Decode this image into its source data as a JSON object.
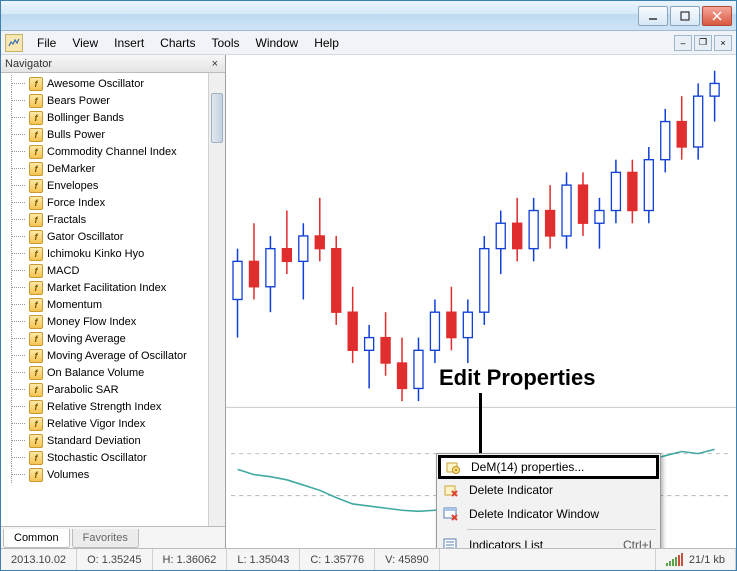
{
  "menubar": {
    "items": [
      "File",
      "View",
      "Insert",
      "Charts",
      "Tools",
      "Window",
      "Help"
    ]
  },
  "navigator": {
    "title": "Navigator",
    "tabs": {
      "common": "Common",
      "favorites": "Favorites"
    },
    "indicators": [
      "Awesome Oscillator",
      "Bears Power",
      "Bollinger Bands",
      "Bulls Power",
      "Commodity Channel Index",
      "DeMarker",
      "Envelopes",
      "Force Index",
      "Fractals",
      "Gator Oscillator",
      "Ichimoku Kinko Hyo",
      "MACD",
      "Market Facilitation Index",
      "Momentum",
      "Money Flow Index",
      "Moving Average",
      "Moving Average of Oscillator",
      "On Balance Volume",
      "Parabolic SAR",
      "Relative Strength Index",
      "Relative Vigor Index",
      "Standard Deviation",
      "Stochastic Oscillator",
      "Volumes"
    ]
  },
  "callout": "Edit Properties",
  "context_menu": {
    "items": [
      {
        "label": "DeM(14) properties...",
        "icon": "gear"
      },
      {
        "label": "Delete Indicator",
        "icon": "delete"
      },
      {
        "label": "Delete Indicator Window",
        "icon": "delete-window"
      }
    ],
    "footer": {
      "label": "Indicators List",
      "shortcut": "Ctrl+I",
      "icon": "list"
    }
  },
  "status": {
    "date": "2013.10.02",
    "open": "O: 1.35245",
    "high": "H: 1.36062",
    "low": "L: 1.35043",
    "close": "C: 1.35776",
    "volume": "V: 45890",
    "connection": "21/1 kb"
  },
  "chart": {
    "main": {
      "type": "candlestick",
      "colors": {
        "bull_body": "#ffffff",
        "bull_border": "#1040d8",
        "bear_body": "#e02d2d",
        "bear_border": "#e02d2d",
        "wick_bull": "#1040d8",
        "wick_bear": "#e02d2d"
      },
      "y_range": [
        1.344,
        1.37
      ],
      "candles": [
        {
          "o": 1.352,
          "h": 1.356,
          "l": 1.349,
          "c": 1.355,
          "dir": "bull"
        },
        {
          "o": 1.355,
          "h": 1.358,
          "l": 1.352,
          "c": 1.353,
          "dir": "bear"
        },
        {
          "o": 1.353,
          "h": 1.357,
          "l": 1.351,
          "c": 1.356,
          "dir": "bull"
        },
        {
          "o": 1.356,
          "h": 1.359,
          "l": 1.354,
          "c": 1.355,
          "dir": "bear"
        },
        {
          "o": 1.355,
          "h": 1.358,
          "l": 1.352,
          "c": 1.357,
          "dir": "bull"
        },
        {
          "o": 1.357,
          "h": 1.36,
          "l": 1.355,
          "c": 1.356,
          "dir": "bear"
        },
        {
          "o": 1.356,
          "h": 1.357,
          "l": 1.35,
          "c": 1.351,
          "dir": "bear"
        },
        {
          "o": 1.351,
          "h": 1.353,
          "l": 1.347,
          "c": 1.348,
          "dir": "bear"
        },
        {
          "o": 1.348,
          "h": 1.35,
          "l": 1.345,
          "c": 1.349,
          "dir": "bull"
        },
        {
          "o": 1.349,
          "h": 1.351,
          "l": 1.346,
          "c": 1.347,
          "dir": "bear"
        },
        {
          "o": 1.347,
          "h": 1.349,
          "l": 1.344,
          "c": 1.345,
          "dir": "bear"
        },
        {
          "o": 1.345,
          "h": 1.349,
          "l": 1.344,
          "c": 1.348,
          "dir": "bull"
        },
        {
          "o": 1.348,
          "h": 1.352,
          "l": 1.347,
          "c": 1.351,
          "dir": "bull"
        },
        {
          "o": 1.351,
          "h": 1.353,
          "l": 1.348,
          "c": 1.349,
          "dir": "bear"
        },
        {
          "o": 1.349,
          "h": 1.352,
          "l": 1.347,
          "c": 1.351,
          "dir": "bull"
        },
        {
          "o": 1.351,
          "h": 1.357,
          "l": 1.35,
          "c": 1.356,
          "dir": "bull"
        },
        {
          "o": 1.356,
          "h": 1.359,
          "l": 1.354,
          "c": 1.358,
          "dir": "bull"
        },
        {
          "o": 1.358,
          "h": 1.36,
          "l": 1.355,
          "c": 1.356,
          "dir": "bear"
        },
        {
          "o": 1.356,
          "h": 1.36,
          "l": 1.355,
          "c": 1.359,
          "dir": "bull"
        },
        {
          "o": 1.359,
          "h": 1.361,
          "l": 1.356,
          "c": 1.357,
          "dir": "bear"
        },
        {
          "o": 1.357,
          "h": 1.362,
          "l": 1.356,
          "c": 1.361,
          "dir": "bull"
        },
        {
          "o": 1.361,
          "h": 1.362,
          "l": 1.357,
          "c": 1.358,
          "dir": "bear"
        },
        {
          "o": 1.358,
          "h": 1.36,
          "l": 1.356,
          "c": 1.359,
          "dir": "bull"
        },
        {
          "o": 1.359,
          "h": 1.363,
          "l": 1.358,
          "c": 1.362,
          "dir": "bull"
        },
        {
          "o": 1.362,
          "h": 1.363,
          "l": 1.358,
          "c": 1.359,
          "dir": "bear"
        },
        {
          "o": 1.359,
          "h": 1.364,
          "l": 1.358,
          "c": 1.363,
          "dir": "bull"
        },
        {
          "o": 1.363,
          "h": 1.367,
          "l": 1.362,
          "c": 1.366,
          "dir": "bull"
        },
        {
          "o": 1.366,
          "h": 1.368,
          "l": 1.363,
          "c": 1.364,
          "dir": "bear"
        },
        {
          "o": 1.364,
          "h": 1.369,
          "l": 1.363,
          "c": 1.368,
          "dir": "bull"
        },
        {
          "o": 1.368,
          "h": 1.37,
          "l": 1.366,
          "c": 1.369,
          "dir": "bull"
        }
      ]
    },
    "sub": {
      "type": "line",
      "color": "#3fa9a0",
      "level_color": "#bfbfbf",
      "levels": [
        0.3,
        0.7
      ],
      "y_range": [
        0,
        1
      ],
      "points": [
        0.55,
        0.5,
        0.48,
        0.45,
        0.4,
        0.35,
        0.28,
        0.22,
        0.2,
        0.18,
        0.16,
        0.15,
        0.16,
        0.2,
        0.3,
        0.45,
        0.58,
        0.62,
        0.6,
        0.58,
        0.56,
        0.55,
        0.57,
        0.63,
        0.66,
        0.64,
        0.68,
        0.72,
        0.7,
        0.74
      ]
    }
  }
}
